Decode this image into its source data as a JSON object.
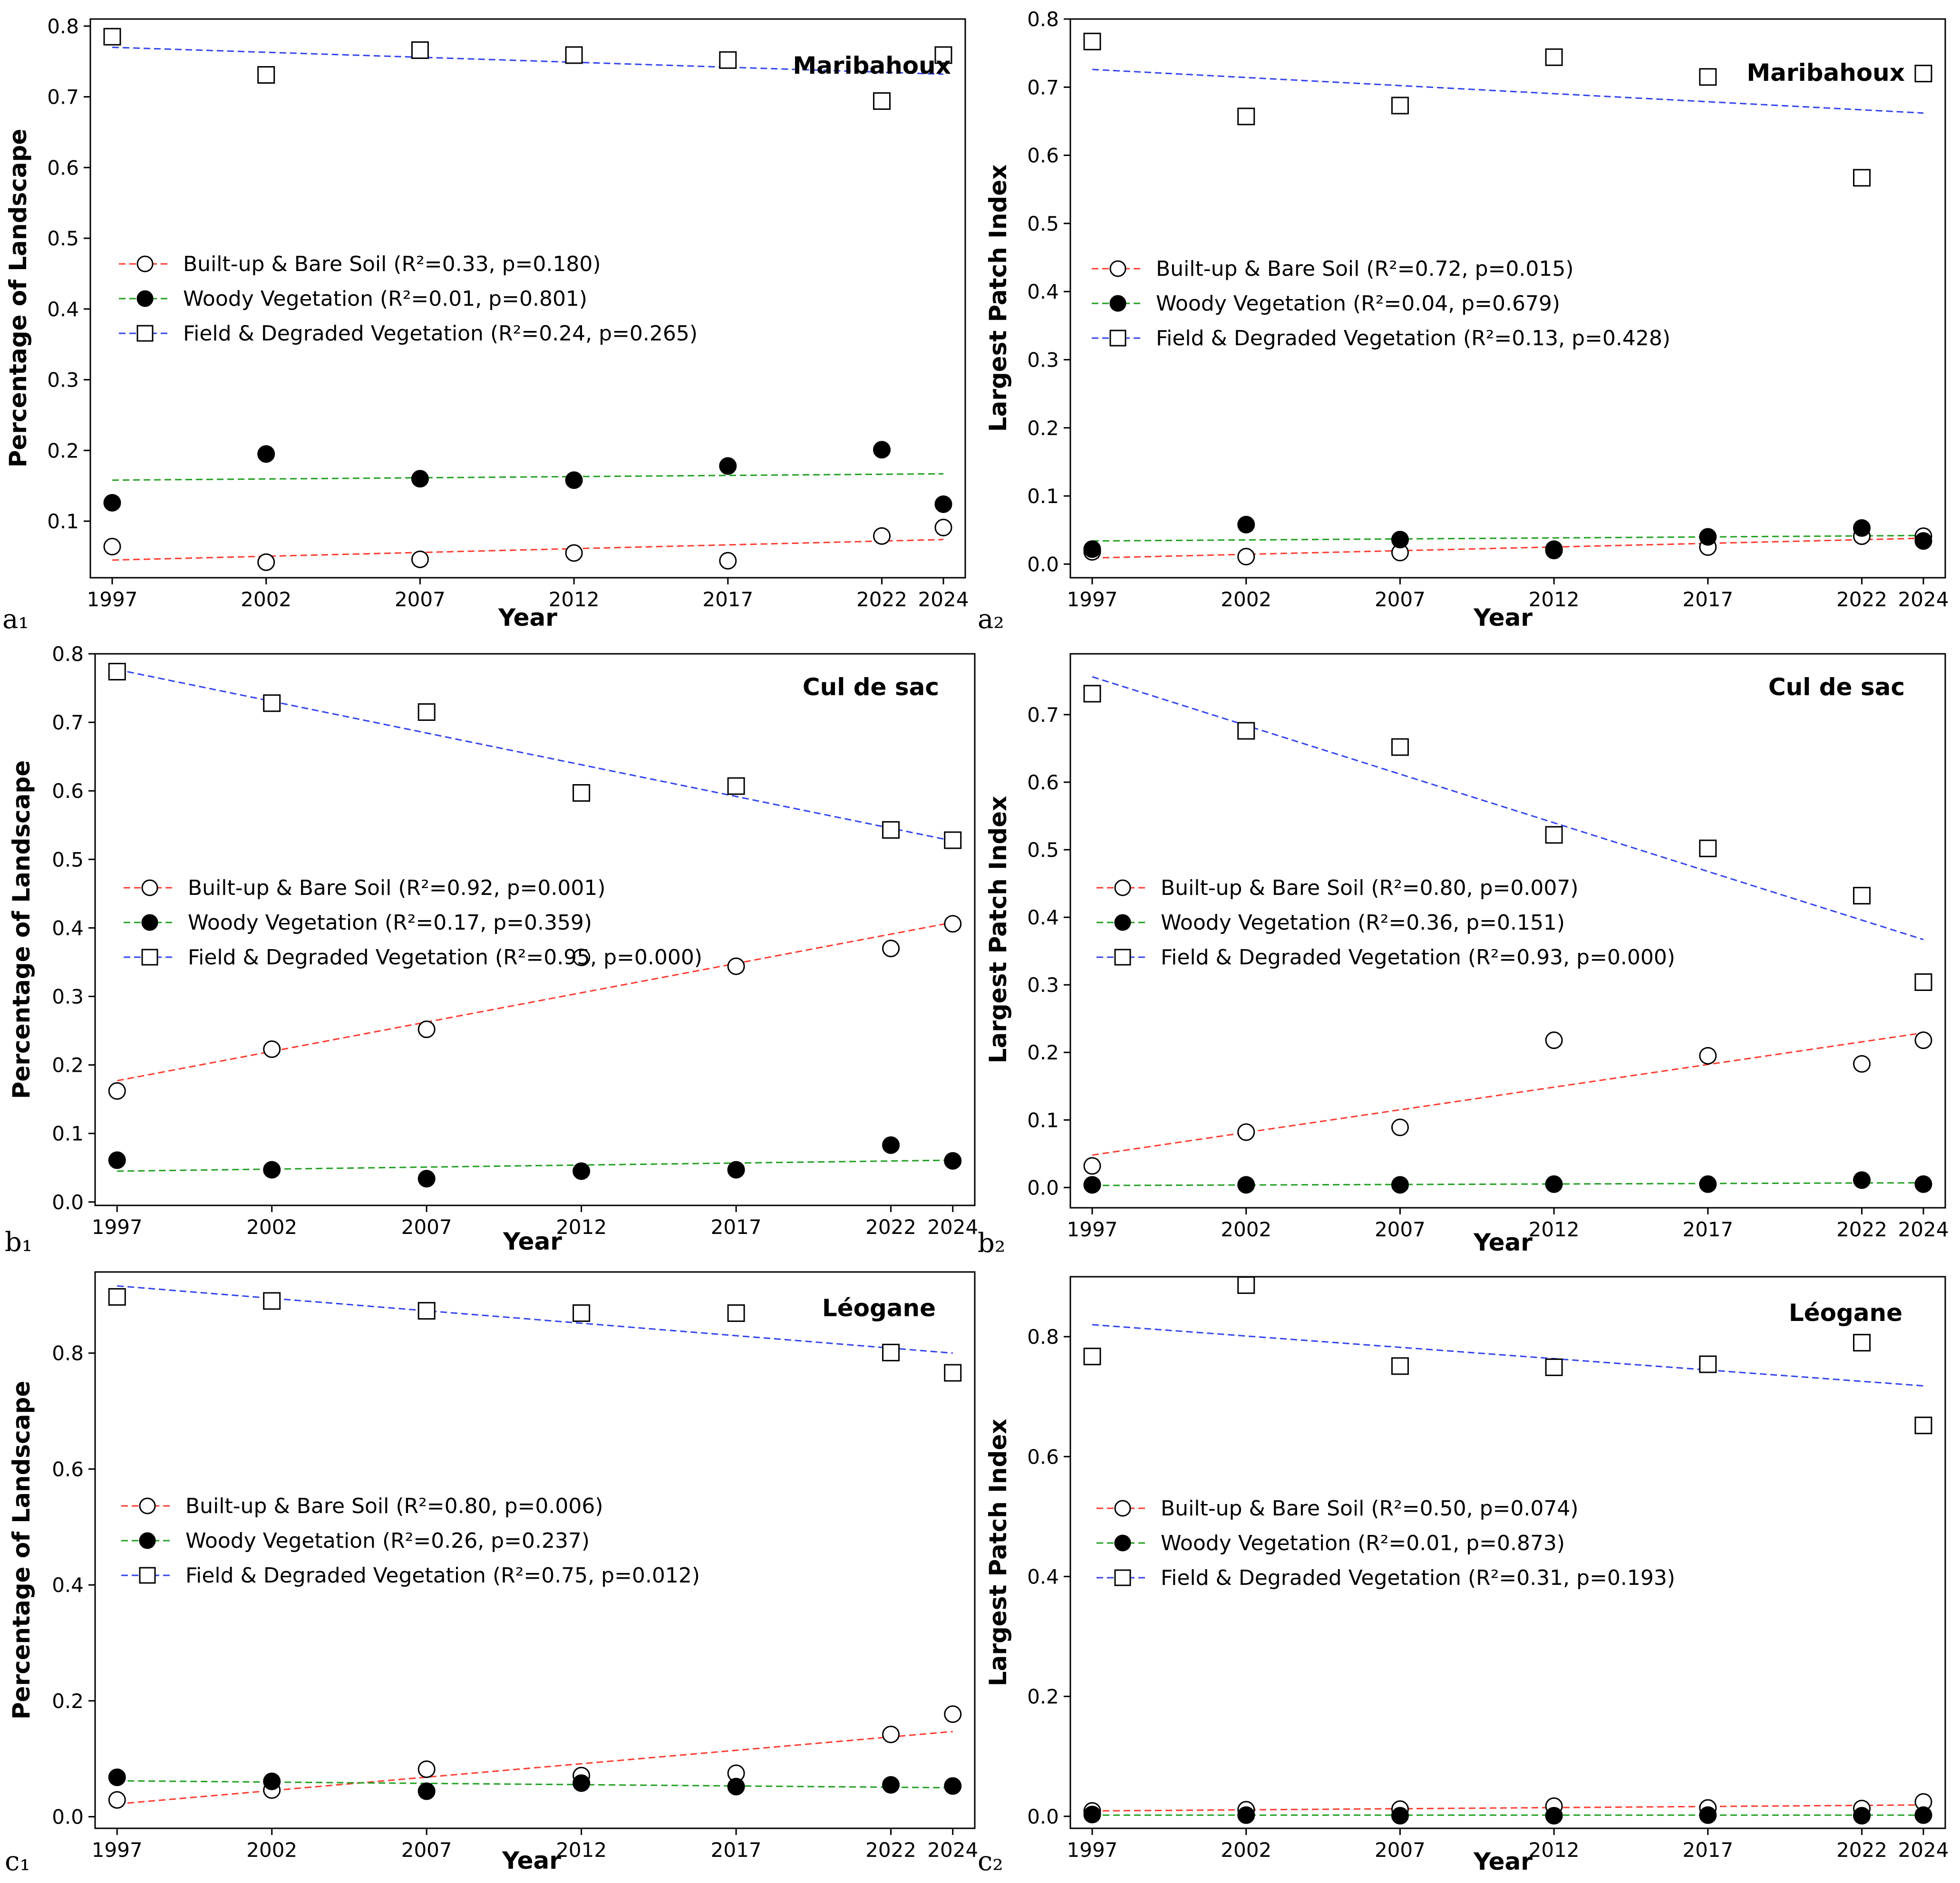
{
  "chart_data": [
    {
      "id": "a1",
      "type": "scatter",
      "corner_label": "a₁",
      "site": "Maribahoux",
      "xlabel": "Year",
      "ylabel": "Percentage of Landscape",
      "x": [
        1997,
        2002,
        2007,
        2012,
        2017,
        2022,
        2024
      ],
      "xlim": [
        1997,
        2024
      ],
      "ylim": [
        0.02,
        0.81
      ],
      "yticks": [
        0.1,
        0.2,
        0.3,
        0.4,
        0.5,
        0.6,
        0.7,
        0.8
      ],
      "yticklabels": [
        "0.1",
        "0.2",
        "0.3",
        "0.4",
        "0.5",
        "0.6",
        "0.7",
        "0.8"
      ],
      "legend_position": "center-left",
      "series": [
        {
          "key": "built",
          "name": "Built-up & Bare Soil",
          "stats": "(R²=0.33, p=0.180)",
          "marker": "open-circle",
          "color": "#ff3b30",
          "values": [
            0.064,
            0.042,
            0.046,
            0.055,
            0.044,
            0.079,
            0.091
          ],
          "trend": [
            0.045,
            0.074
          ]
        },
        {
          "key": "woody",
          "name": "Woody Vegetation",
          "stats": "(R²=0.01, p=0.801)",
          "marker": "filled-circle",
          "color": "#22a022",
          "values": [
            0.126,
            0.195,
            0.16,
            0.158,
            0.178,
            0.201,
            0.124
          ],
          "trend": [
            0.158,
            0.167
          ]
        },
        {
          "key": "field",
          "name": "Field & Degraded Vegetation",
          "stats": "(R²=0.24, p=0.265)",
          "marker": "open-square",
          "color": "#3344ee",
          "values": [
            0.785,
            0.731,
            0.766,
            0.759,
            0.752,
            0.694,
            0.759
          ],
          "trend": [
            0.77,
            0.732
          ]
        }
      ]
    },
    {
      "id": "a2",
      "type": "scatter",
      "corner_label": "a₂",
      "site": "Maribahoux",
      "xlabel": "Year",
      "ylabel": "Largest Patch Index",
      "x": [
        1997,
        2002,
        2007,
        2012,
        2017,
        2022,
        2024
      ],
      "xlim": [
        1997,
        2024
      ],
      "ylim": [
        -0.02,
        0.8
      ],
      "yticks": [
        0.0,
        0.1,
        0.2,
        0.3,
        0.4,
        0.5,
        0.6,
        0.7,
        0.8
      ],
      "yticklabels": [
        "0.0",
        "0.1",
        "0.2",
        "0.3",
        "0.4",
        "0.5",
        "0.6",
        "0.7",
        "0.8"
      ],
      "legend_position": "center-left",
      "series": [
        {
          "key": "built",
          "name": "Built-up & Bare Soil",
          "stats": "(R²=0.72, p=0.015)",
          "marker": "open-circle",
          "color": "#ff3b30",
          "values": [
            0.018,
            0.011,
            0.017,
            0.022,
            0.025,
            0.041,
            0.041
          ],
          "trend": [
            0.009,
            0.038
          ]
        },
        {
          "key": "woody",
          "name": "Woody Vegetation",
          "stats": "(R²=0.04, p=0.679)",
          "marker": "filled-circle",
          "color": "#22a022",
          "values": [
            0.022,
            0.058,
            0.036,
            0.02,
            0.04,
            0.053,
            0.034
          ],
          "trend": [
            0.034,
            0.042
          ]
        },
        {
          "key": "field",
          "name": "Field & Degraded Vegetation",
          "stats": "(R²=0.13, p=0.428)",
          "marker": "open-square",
          "color": "#3344ee",
          "values": [
            0.767,
            0.657,
            0.673,
            0.744,
            0.715,
            0.567,
            0.72
          ],
          "trend": [
            0.726,
            0.662
          ]
        }
      ]
    },
    {
      "id": "b1",
      "type": "scatter",
      "corner_label": "b₁",
      "site": "Cul de sac",
      "xlabel": "Year",
      "ylabel": "Percentage of Landscape",
      "x": [
        1997,
        2002,
        2007,
        2012,
        2017,
        2022,
        2024
      ],
      "xlim": [
        1997,
        2024
      ],
      "ylim": [
        -0.005,
        0.8
      ],
      "yticks": [
        0.0,
        0.1,
        0.2,
        0.3,
        0.4,
        0.5,
        0.6,
        0.7,
        0.8
      ],
      "yticklabels": [
        "0.0",
        "0.1",
        "0.2",
        "0.3",
        "0.4",
        "0.5",
        "0.6",
        "0.7",
        "0.8"
      ],
      "legend_position": "center-left",
      "series": [
        {
          "key": "built",
          "name": "Built-up & Bare Soil",
          "stats": "(R²=0.92, p=0.001)",
          "marker": "open-circle",
          "color": "#ff3b30",
          "values": [
            0.162,
            0.223,
            0.252,
            0.357,
            0.344,
            0.37,
            0.406
          ],
          "trend": [
            0.177,
            0.408
          ]
        },
        {
          "key": "woody",
          "name": "Woody Vegetation",
          "stats": "(R²=0.17, p=0.359)",
          "marker": "filled-circle",
          "color": "#22a022",
          "values": [
            0.061,
            0.047,
            0.034,
            0.045,
            0.047,
            0.083,
            0.06
          ],
          "trend": [
            0.045,
            0.061
          ]
        },
        {
          "key": "field",
          "name": "Field & Degraded Vegetation",
          "stats": "(R²=0.95, p=0.000)",
          "marker": "open-square",
          "color": "#3344ee",
          "values": [
            0.774,
            0.728,
            0.715,
            0.597,
            0.607,
            0.543,
            0.528
          ],
          "trend": [
            0.777,
            0.527
          ]
        }
      ]
    },
    {
      "id": "b2",
      "type": "scatter",
      "corner_label": "b₂",
      "site": "Cul de sac",
      "xlabel": "Year",
      "ylabel": "Largest Patch Index",
      "x": [
        1997,
        2002,
        2007,
        2012,
        2017,
        2022,
        2024
      ],
      "xlim": [
        1997,
        2024
      ],
      "ylim": [
        -0.03,
        0.79
      ],
      "yticks": [
        0.0,
        0.1,
        0.2,
        0.3,
        0.4,
        0.5,
        0.6,
        0.7
      ],
      "yticklabels": [
        "0.0",
        "0.1",
        "0.2",
        "0.3",
        "0.4",
        "0.5",
        "0.6",
        "0.7"
      ],
      "legend_position": "center-left",
      "series": [
        {
          "key": "built",
          "name": "Built-up & Bare Soil",
          "stats": "(R²=0.80, p=0.007)",
          "marker": "open-circle",
          "color": "#ff3b30",
          "values": [
            0.032,
            0.082,
            0.089,
            0.218,
            0.195,
            0.183,
            0.218
          ],
          "trend": [
            0.048,
            0.229
          ]
        },
        {
          "key": "woody",
          "name": "Woody Vegetation",
          "stats": "(R²=0.36, p=0.151)",
          "marker": "filled-circle",
          "color": "#22a022",
          "values": [
            0.004,
            0.004,
            0.004,
            0.005,
            0.005,
            0.011,
            0.005
          ],
          "trend": [
            0.003,
            0.007
          ]
        },
        {
          "key": "field",
          "name": "Field & Degraded Vegetation",
          "stats": "(R²=0.93, p=0.000)",
          "marker": "open-square",
          "color": "#3344ee",
          "values": [
            0.731,
            0.676,
            0.652,
            0.522,
            0.502,
            0.432,
            0.304
          ],
          "trend": [
            0.756,
            0.367
          ]
        }
      ]
    },
    {
      "id": "c1",
      "type": "scatter",
      "corner_label": "c₁",
      "site": "Léogane",
      "xlabel": "Year",
      "ylabel": "Percentage of Landscape",
      "x": [
        1997,
        2002,
        2007,
        2012,
        2017,
        2022,
        2024
      ],
      "xlim": [
        1997,
        2024
      ],
      "ylim": [
        -0.02,
        0.94
      ],
      "yticks": [
        0.0,
        0.2,
        0.4,
        0.6,
        0.8
      ],
      "yticklabels": [
        "0.0",
        "0.2",
        "0.4",
        "0.6",
        "0.8"
      ],
      "legend_position": "center-left",
      "series": [
        {
          "key": "built",
          "name": "Built-up & Bare Soil",
          "stats": "(R²=0.80, p=0.006)",
          "marker": "open-circle",
          "color": "#ff3b30",
          "values": [
            0.029,
            0.046,
            0.082,
            0.071,
            0.075,
            0.142,
            0.177
          ],
          "trend": [
            0.022,
            0.147
          ]
        },
        {
          "key": "woody",
          "name": "Woody Vegetation",
          "stats": "(R²=0.26, p=0.237)",
          "marker": "filled-circle",
          "color": "#22a022",
          "values": [
            0.068,
            0.061,
            0.044,
            0.058,
            0.052,
            0.055,
            0.053
          ],
          "trend": [
            0.062,
            0.05
          ]
        },
        {
          "key": "field",
          "name": "Field & Degraded Vegetation",
          "stats": "(R²=0.75, p=0.012)",
          "marker": "open-square",
          "color": "#3344ee",
          "values": [
            0.897,
            0.89,
            0.873,
            0.869,
            0.869,
            0.801,
            0.766
          ],
          "trend": [
            0.916,
            0.8
          ]
        }
      ]
    },
    {
      "id": "c2",
      "type": "scatter",
      "corner_label": "c₂",
      "site": "Léogane",
      "xlabel": "Year",
      "ylabel": "Largest Patch Index",
      "x": [
        1997,
        2002,
        2007,
        2012,
        2017,
        2022,
        2024
      ],
      "xlim": [
        1997,
        2024
      ],
      "ylim": [
        -0.02,
        0.9
      ],
      "yticks": [
        0.0,
        0.2,
        0.4,
        0.6,
        0.8
      ],
      "yticklabels": [
        "0.0",
        "0.2",
        "0.4",
        "0.6",
        "0.8"
      ],
      "legend_position": "center-left",
      "series": [
        {
          "key": "built",
          "name": "Built-up & Bare Soil",
          "stats": "(R²=0.50, p=0.074)",
          "marker": "open-circle",
          "color": "#ff3b30",
          "values": [
            0.009,
            0.011,
            0.012,
            0.017,
            0.014,
            0.013,
            0.024
          ],
          "trend": [
            0.009,
            0.019
          ]
        },
        {
          "key": "woody",
          "name": "Woody Vegetation",
          "stats": "(R²=0.01, p=0.873)",
          "marker": "filled-circle",
          "color": "#22a022",
          "values": [
            0.003,
            0.002,
            0.001,
            0.001,
            0.002,
            0.001,
            0.002
          ],
          "trend": [
            0.002,
            0.002
          ]
        },
        {
          "key": "field",
          "name": "Field & Degraded Vegetation",
          "stats": "(R²=0.31, p=0.193)",
          "marker": "open-square",
          "color": "#3344ee",
          "values": [
            0.767,
            0.886,
            0.751,
            0.749,
            0.754,
            0.79,
            0.652
          ],
          "trend": [
            0.82,
            0.718
          ]
        }
      ]
    }
  ]
}
